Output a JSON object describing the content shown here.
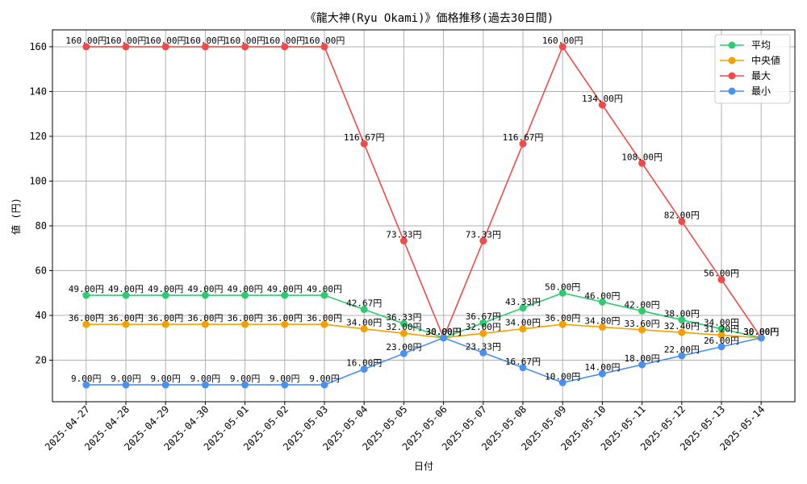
{
  "chart_data": {
    "type": "line",
    "title": "《龍大神(Ryu Okami)》価格推移(過去30日間)",
    "xlabel": "日付",
    "ylabel": "値 (円)",
    "ylim": [
      1.45,
      167.55
    ],
    "yticks": [
      20,
      40,
      60,
      80,
      100,
      120,
      140,
      160
    ],
    "grid": true,
    "legend_position": "top-right",
    "value_suffix": "円",
    "categories": [
      "2025-04-27",
      "2025-04-28",
      "2025-04-29",
      "2025-04-30",
      "2025-05-01",
      "2025-05-02",
      "2025-05-03",
      "2025-05-04",
      "2025-05-05",
      "2025-05-06",
      "2025-05-07",
      "2025-05-08",
      "2025-05-09",
      "2025-05-10",
      "2025-05-11",
      "2025-05-12",
      "2025-05-13",
      "2025-05-14"
    ],
    "series": [
      {
        "name": "平均",
        "color": "#2ecc71",
        "values": [
          49.0,
          49.0,
          49.0,
          49.0,
          49.0,
          49.0,
          49.0,
          42.67,
          36.33,
          30.0,
          36.67,
          43.33,
          50.0,
          46.0,
          42.0,
          38.0,
          34.0,
          30.0
        ]
      },
      {
        "name": "中央値",
        "color": "#f5a000",
        "values": [
          36.0,
          36.0,
          36.0,
          36.0,
          36.0,
          36.0,
          36.0,
          34.0,
          32.0,
          30.0,
          32.0,
          34.0,
          36.0,
          34.8,
          33.6,
          32.4,
          31.2,
          30.0
        ]
      },
      {
        "name": "最大",
        "color": "#f04a4a",
        "values": [
          160.0,
          160.0,
          160.0,
          160.0,
          160.0,
          160.0,
          160.0,
          116.67,
          73.33,
          30.0,
          73.33,
          116.67,
          160.0,
          134.0,
          108.0,
          82.0,
          56.0,
          30.0
        ]
      },
      {
        "name": "最小",
        "color": "#4a90f0",
        "values": [
          9.0,
          9.0,
          9.0,
          9.0,
          9.0,
          9.0,
          9.0,
          16.0,
          23.0,
          30.0,
          23.33,
          16.67,
          10.0,
          14.0,
          18.0,
          22.0,
          26.0,
          30.0
        ]
      }
    ]
  }
}
